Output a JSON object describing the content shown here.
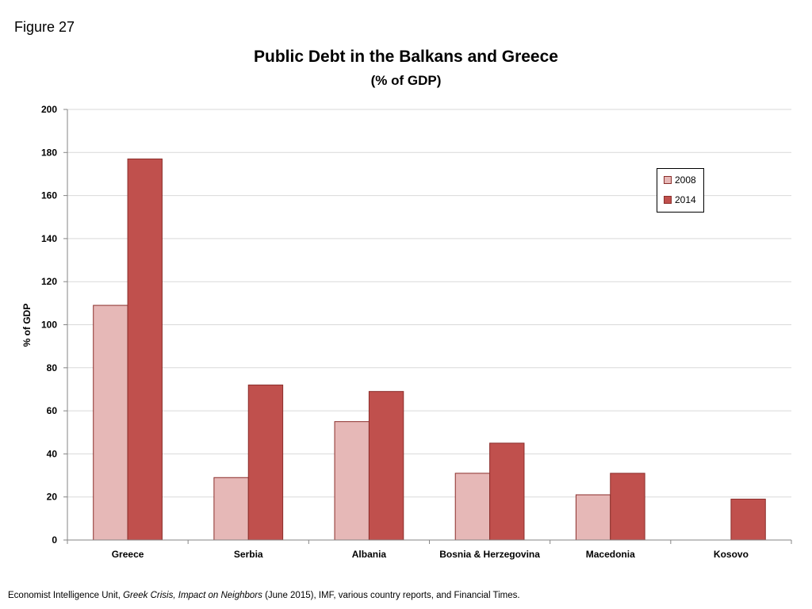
{
  "figure_label": "Figure 27",
  "source": {
    "before": "Economist Intelligence Unit, ",
    "italic": "Greek Crisis, Impact on Neighbors",
    "after": " (June 2015), IMF, various country reports, and Financial Times."
  },
  "colors": {
    "series_2008": "#e6b8b7",
    "series_2014": "#c0504d",
    "bar_border": "#8b2e2b",
    "grid": "#d9d9d9",
    "axis": "#868686"
  },
  "chart_data": {
    "type": "bar",
    "title": "Public Debt in the Balkans and Greece",
    "subtitle": "(% of GDP)",
    "xlabel": "",
    "ylabel": "% of GDP",
    "ylim": [
      0,
      200
    ],
    "yticks": [
      0,
      20,
      40,
      60,
      80,
      100,
      120,
      140,
      160,
      180,
      200
    ],
    "grid": true,
    "legend_position": "top-right",
    "categories": [
      "Greece",
      "Serbia",
      "Albania",
      "Bosnia & Herzegovina",
      "Macedonia",
      "Kosovo"
    ],
    "series": [
      {
        "name": "2008",
        "values": [
          109,
          29,
          55,
          31,
          21,
          null
        ]
      },
      {
        "name": "2014",
        "values": [
          177,
          72,
          69,
          45,
          31,
          19
        ]
      }
    ]
  }
}
